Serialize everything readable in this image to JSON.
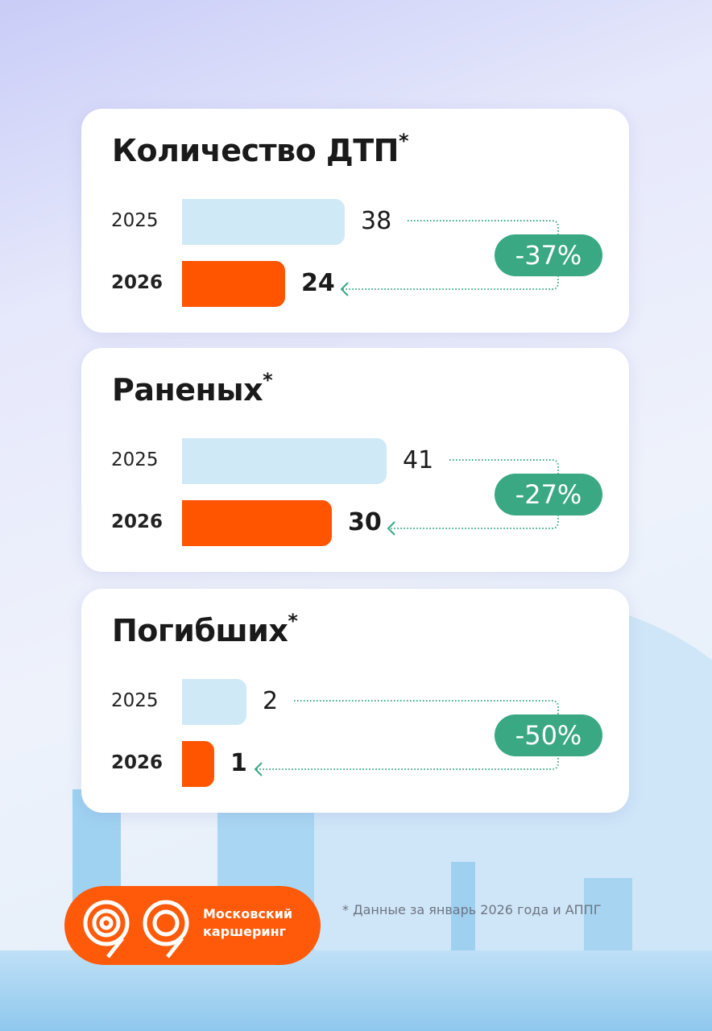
{
  "colors": {
    "old_bar": "#cfe9f7",
    "new_bar": "#ff5500",
    "badge": "#3aa882",
    "brand": "#ff5a0a"
  },
  "chart_data": [
    {
      "type": "bar",
      "orientation": "horizontal",
      "title": "Количество ДТП",
      "title_mark": "*",
      "categories": [
        "2025",
        "2026"
      ],
      "values": [
        38,
        24
      ],
      "value_labels": [
        "38",
        "24"
      ],
      "change": "-37%"
    },
    {
      "type": "bar",
      "orientation": "horizontal",
      "title": "Раненых",
      "title_mark": "*",
      "categories": [
        "2025",
        "2026"
      ],
      "values": [
        41,
        30
      ],
      "value_labels": [
        "41",
        "30"
      ],
      "change": "-27%"
    },
    {
      "type": "bar",
      "orientation": "horizontal",
      "title": "Погибших",
      "title_mark": "*",
      "categories": [
        "2025",
        "2026"
      ],
      "values": [
        2,
        1
      ],
      "value_labels": [
        "2",
        "1"
      ],
      "change": "-50%"
    }
  ],
  "logo": {
    "line1": "Московский",
    "line2": "каршеринг"
  },
  "footnote": "* Данные за январь  2026 года и АППГ"
}
